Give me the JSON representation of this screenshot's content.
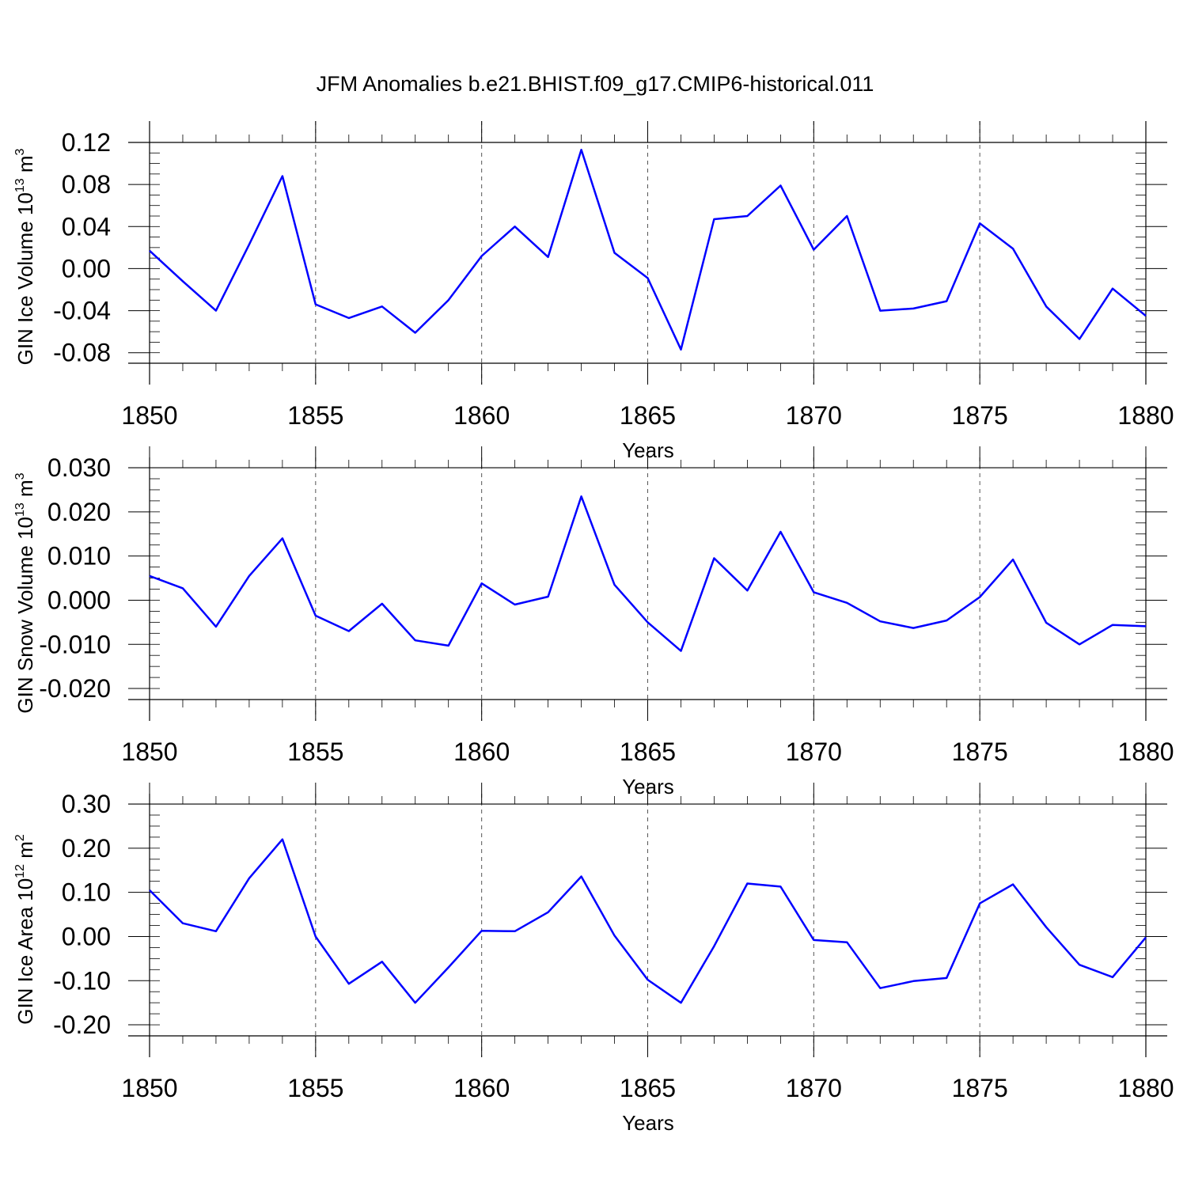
{
  "title": "JFM Anomalies b.e21.BHIST.f09_g17.CMIP6-historical.011",
  "colors": {
    "line": "#0000ff"
  },
  "chart_data": [
    {
      "type": "line",
      "ylabel": {
        "base": "GIN Ice Volume 10",
        "exp": "13",
        "unit": " m",
        "unit_exp": "3"
      },
      "xlabel": "Years",
      "xlim": [
        1850,
        1880
      ],
      "ylim": [
        -0.09,
        0.12
      ],
      "xticks": [
        1850,
        1855,
        1860,
        1865,
        1870,
        1875,
        1880
      ],
      "yticks": [
        -0.08,
        -0.04,
        0.0,
        0.04,
        0.08,
        0.12
      ],
      "ytick_labels": [
        "-0.08",
        "-0.04",
        "0.00",
        "0.04",
        "0.08",
        "0.12"
      ],
      "grid": "vertical dashed at x ticks",
      "x": [
        1850,
        1851,
        1852,
        1853,
        1854,
        1855,
        1856,
        1857,
        1858,
        1859,
        1860,
        1861,
        1862,
        1863,
        1864,
        1865,
        1866,
        1867,
        1868,
        1869,
        1870,
        1871,
        1872,
        1873,
        1874,
        1875,
        1876,
        1877,
        1878,
        1879,
        1880
      ],
      "values": [
        0.017,
        -0.012,
        -0.04,
        0.023,
        0.088,
        -0.034,
        -0.047,
        -0.036,
        -0.061,
        -0.03,
        0.012,
        0.04,
        0.011,
        0.113,
        0.015,
        -0.009,
        -0.077,
        0.047,
        0.05,
        0.079,
        0.018,
        0.05,
        -0.04,
        -0.038,
        -0.031,
        0.043,
        0.019,
        -0.036,
        -0.067,
        -0.019,
        -0.045
      ]
    },
    {
      "type": "line",
      "ylabel": {
        "base": "GIN Snow Volume 10",
        "exp": "13",
        "unit": " m",
        "unit_exp": "3"
      },
      "xlabel": "Years",
      "xlim": [
        1850,
        1880
      ],
      "ylim": [
        -0.0225,
        0.0275
      ],
      "xticks": [
        1850,
        1855,
        1860,
        1865,
        1870,
        1875,
        1880
      ],
      "yticks": [
        -0.02,
        -0.01,
        0.0,
        0.01,
        0.02,
        0.03
      ],
      "ytick_labels": [
        "-0.020",
        "-0.010",
        "0.000",
        "0.010",
        "0.020",
        "0.030"
      ],
      "grid": "vertical dashed at x ticks",
      "x": [
        1850,
        1851,
        1852,
        1853,
        1854,
        1855,
        1856,
        1857,
        1858,
        1859,
        1860,
        1861,
        1862,
        1863,
        1864,
        1865,
        1866,
        1867,
        1868,
        1869,
        1870,
        1871,
        1872,
        1873,
        1874,
        1875,
        1876,
        1877,
        1878,
        1879,
        1880
      ],
      "values": [
        0.0055,
        0.0027,
        -0.006,
        0.0055,
        0.014,
        -0.0035,
        -0.007,
        -0.0008,
        -0.0091,
        -0.0103,
        0.0038,
        -0.001,
        0.0008,
        0.0235,
        0.0035,
        -0.005,
        -0.0115,
        0.0095,
        0.0022,
        0.0155,
        0.0018,
        -0.0006,
        -0.0048,
        -0.0063,
        -0.0046,
        0.0007,
        0.0092,
        -0.0051,
        -0.01,
        -0.0056,
        -0.0059
      ]
    },
    {
      "type": "line",
      "ylabel": {
        "base": "GIN Ice Area 10",
        "exp": "12",
        "unit": " m",
        "unit_exp": "2"
      },
      "xlabel": "Years",
      "xlim": [
        1850,
        1880
      ],
      "ylim": [
        -0.225,
        0.275
      ],
      "xticks": [
        1850,
        1855,
        1860,
        1865,
        1870,
        1875,
        1880
      ],
      "yticks": [
        -0.2,
        -0.1,
        0.0,
        0.1,
        0.2,
        0.3
      ],
      "ytick_labels": [
        "-0.20",
        "-0.10",
        "0.00",
        "0.10",
        "0.20",
        "0.30"
      ],
      "grid": "vertical dashed at x ticks",
      "x": [
        1850,
        1851,
        1852,
        1853,
        1854,
        1855,
        1856,
        1857,
        1858,
        1859,
        1860,
        1861,
        1862,
        1863,
        1864,
        1865,
        1866,
        1867,
        1868,
        1869,
        1870,
        1871,
        1872,
        1873,
        1874,
        1875,
        1876,
        1877,
        1878,
        1879,
        1880
      ],
      "values": [
        0.105,
        0.03,
        0.012,
        0.132,
        0.22,
        0.0,
        -0.107,
        -0.057,
        -0.15,
        -0.07,
        0.013,
        0.012,
        0.055,
        0.136,
        0.002,
        -0.098,
        -0.15,
        -0.022,
        0.12,
        0.113,
        -0.008,
        -0.013,
        -0.117,
        -0.101,
        -0.094,
        0.075,
        0.118,
        0.021,
        -0.064,
        -0.092,
        -0.002
      ]
    }
  ]
}
